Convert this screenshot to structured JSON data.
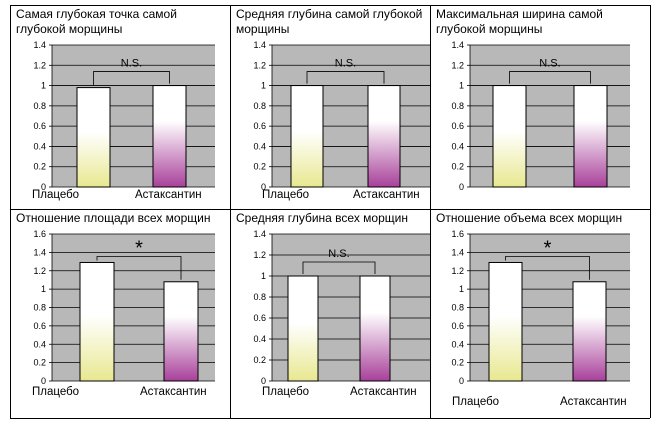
{
  "chart_data": [
    {
      "type": "bar",
      "title": "Самая глубокая точка самой глубокой морщины",
      "categories": [
        "Плацебо",
        "Астаксантин"
      ],
      "values": [
        0.98,
        1.0
      ],
      "yticks": [
        "0",
        "0.2",
        "0.4",
        "0.6",
        "0.8",
        "1",
        "1.2",
        "1.4"
      ],
      "ylim": [
        0,
        1.4
      ],
      "annotation": "N.S.",
      "grid": true
    },
    {
      "type": "bar",
      "title": "Средняя глубина самой глубокой морщины",
      "categories": [
        "Плацебо",
        "Астаксантин"
      ],
      "values": [
        1.0,
        1.0
      ],
      "yticks": [
        "0",
        "0.2",
        "0.4",
        "0.6",
        "0.8",
        "1",
        "1.2",
        "1.4"
      ],
      "ylim": [
        0,
        1.4
      ],
      "annotation": "N.S.",
      "grid": true
    },
    {
      "type": "bar",
      "title": "Максимальная ширина самой глубокой морщины",
      "categories": [
        "Плацебо",
        "Астаксантин"
      ],
      "values": [
        1.0,
        1.0
      ],
      "yticks": [
        "0",
        "0.2",
        "0.4",
        "0.6",
        "0.8",
        "1",
        "1.2",
        "1.4"
      ],
      "ylim": [
        0,
        1.4
      ],
      "annotation": "N.S.",
      "grid": true
    },
    {
      "type": "bar",
      "title": "Отношение площади всех морщин",
      "categories": [
        "Плацебо",
        "Астаксантин"
      ],
      "values": [
        1.29,
        1.08
      ],
      "yticks": [
        "0",
        "0.2",
        "0.4",
        "0.6",
        "0.8",
        "1",
        "1.2",
        "1.4",
        "1.6"
      ],
      "ylim": [
        0,
        1.6
      ],
      "annotation": "*",
      "grid": true
    },
    {
      "type": "bar",
      "title": "Средняя глубина всех морщин",
      "categories": [
        "Плацебо",
        "Астаксантин"
      ],
      "values": [
        1.0,
        1.0
      ],
      "yticks": [
        "0",
        "0.2",
        "0.4",
        "0.6",
        "0.8",
        "1",
        "1.2",
        "1.4"
      ],
      "ylim": [
        0,
        1.4
      ],
      "annotation": "N.S.",
      "grid": true
    },
    {
      "type": "bar",
      "title": "Отношение объема всех морщин",
      "categories": [
        "Плацебо",
        "Астаксантин"
      ],
      "values": [
        1.29,
        1.08
      ],
      "yticks": [
        "0",
        "0.2",
        "0.4",
        "0.6",
        "0.8",
        "1",
        "1.2",
        "1.4",
        "1.6"
      ],
      "ylim": [
        0,
        1.6
      ],
      "annotation": "*",
      "grid": true
    }
  ],
  "colors": {
    "plot_bg": "#b8b8b8",
    "placebo_top": "#ffffff",
    "placebo_bottom": "#e8e890",
    "astax_top": "#ffffff",
    "astax_bottom": "#a8409a",
    "border": "#000000"
  }
}
